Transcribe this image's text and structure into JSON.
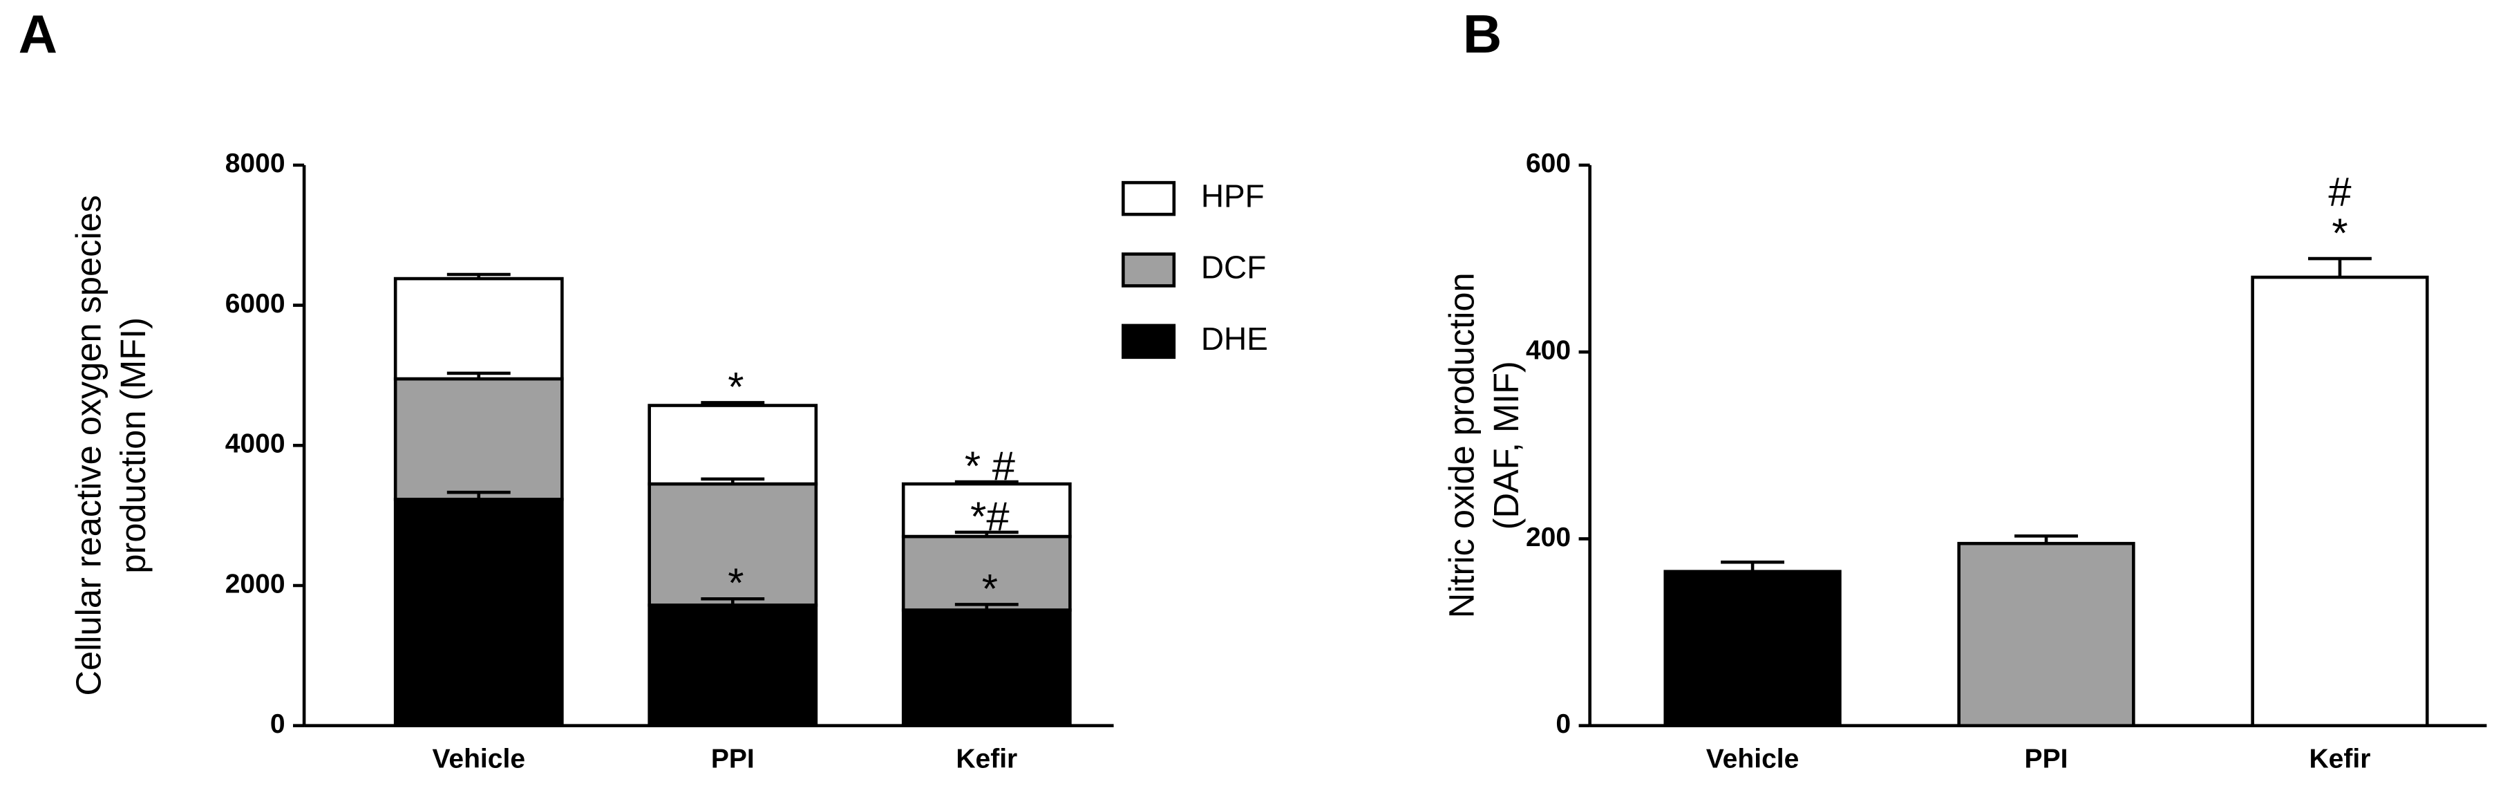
{
  "panel_labels": [
    "A",
    "B"
  ],
  "chart_data": [
    {
      "type": "stacked_bar",
      "ylabel": [
        "Cellular reactive oxygen species",
        "production (MFI)"
      ],
      "categories": [
        "Vehicle",
        "PPI",
        "Kefir"
      ],
      "series": [
        {
          "name": "DHE",
          "color": "#000000",
          "values": [
            3230,
            1720,
            1650
          ],
          "errors": [
            100,
            90,
            80
          ],
          "significance": [
            null,
            "*",
            "*"
          ]
        },
        {
          "name": "DCF",
          "color": "#a0a0a0",
          "values": [
            1720,
            1730,
            1050
          ],
          "errors": [
            80,
            70,
            60
          ],
          "significance": [
            null,
            null,
            "*#"
          ]
        },
        {
          "name": "HPF",
          "color": "#ffffff",
          "values": [
            1430,
            1120,
            750
          ],
          "errors": [
            60,
            40,
            30
          ],
          "significance": [
            null,
            "*",
            "* #"
          ]
        }
      ],
      "ylim": [
        0,
        8000
      ],
      "yticks": [
        0,
        2000,
        4000,
        6000,
        8000
      ]
    },
    {
      "type": "bar",
      "ylabel": [
        "Nitric oxide production",
        "(DAF, MIF)"
      ],
      "categories": [
        "Vehicle",
        "PPI",
        "Kefir"
      ],
      "values": [
        165,
        195,
        480
      ],
      "errors": [
        10,
        8,
        20
      ],
      "colors": [
        "#000000",
        "#a0a0a0",
        "#ffffff"
      ],
      "significance": [
        [],
        [],
        [
          "*",
          "#"
        ]
      ],
      "ylim": [
        0,
        600
      ],
      "yticks": [
        0,
        200,
        400,
        600
      ]
    }
  ]
}
